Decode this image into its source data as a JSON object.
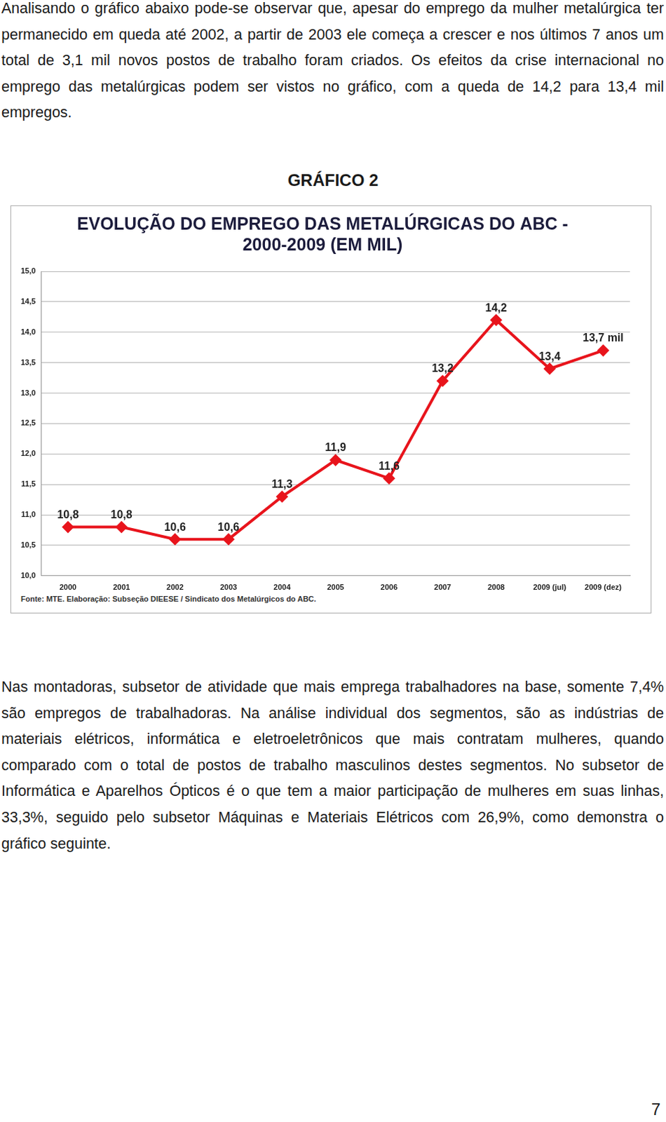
{
  "paragraphs_before": [
    "Analisando o gráfico abaixo pode-se observar que, apesar do emprego da mulher metalúrgica ter permanecido em queda até 2002, a partir de 2003 ele começa a crescer e nos últimos 7 anos um total de 3,1 mil novos postos de trabalho foram criados. Os efeitos da crise internacional no emprego das metalúrgicas podem ser vistos no gráfico, com a queda de 14,2 para 13,4 mil empregos."
  ],
  "figure_label": "GRÁFICO 2",
  "chart_data": {
    "type": "line",
    "title": [
      "EVOLUÇÃO DO EMPREGO DAS METALÚRGICAS DO ABC -",
      "2000-2009 (EM MIL)"
    ],
    "categories": [
      "2000",
      "2001",
      "2002",
      "2003",
      "2004",
      "2005",
      "2006",
      "2007",
      "2008",
      "2009 (jul)",
      "2009 (dez)"
    ],
    "values": [
      10.8,
      10.8,
      10.6,
      10.6,
      11.3,
      11.9,
      11.6,
      13.2,
      14.2,
      13.4,
      13.7
    ],
    "value_labels": [
      "10,8",
      "10,8",
      "10,6",
      "10,6",
      "11,3",
      "11,9",
      "11,6",
      "13,2",
      "14,2",
      "13,4",
      "13,7 mil"
    ],
    "data_labels": true,
    "color": "#e8141c",
    "marker": "diamond",
    "grid": true,
    "ylim": [
      10,
      15
    ],
    "yticks": [
      {
        "value": 10,
        "label": "10,0"
      },
      {
        "value": 10.5,
        "label": "10,5"
      },
      {
        "value": 11,
        "label": "11,0"
      },
      {
        "value": 11.5,
        "label": "11,5"
      },
      {
        "value": 12,
        "label": "12,0"
      },
      {
        "value": 12.5,
        "label": "12,5"
      },
      {
        "value": 13,
        "label": "13,0"
      },
      {
        "value": 13.5,
        "label": "13,5"
      },
      {
        "value": 14,
        "label": "14,0"
      },
      {
        "value": 14.5,
        "label": "14,5"
      },
      {
        "value": 15,
        "label": "15,0"
      }
    ],
    "source": "Fonte: MTE. Elaboração: Subseção DIEESE / Sindicato dos Metalúrgicos do ABC."
  },
  "paragraphs_after": [
    "Nas montadoras, subsetor de atividade que mais emprega trabalhadores na base, somente 7,4% são empregos de trabalhadoras. Na análise individual dos segmentos, são as indústrias de materiais elétricos, informática e eletroeletrônicos que mais contratam mulheres, quando comparado com o total de postos de trabalho masculinos destes segmentos. No subsetor de Informática e Aparelhos Ópticos é o que tem a maior participação de mulheres em suas linhas, 33,3%, seguido pelo subsetor Máquinas e Materiais Elétricos com 26,9%, como demonstra o gráfico seguinte."
  ],
  "page_number": "7"
}
